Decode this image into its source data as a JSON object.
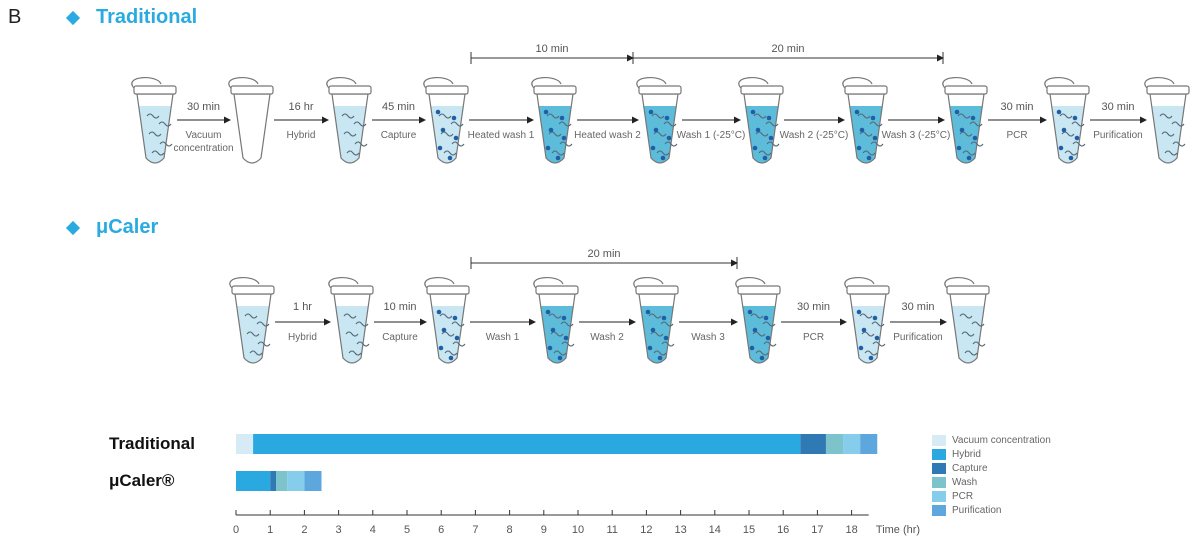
{
  "panel_label": "B",
  "traditional": {
    "title": "Traditional",
    "steps": [
      {
        "time": "30 min",
        "label": "Vacuum",
        "label2": "concentration"
      },
      {
        "time": "16 hr",
        "label": "Hybrid"
      },
      {
        "time": "45 min",
        "label": "Capture"
      },
      {
        "time": "",
        "label": "Heated wash 1"
      },
      {
        "time": "",
        "label": "Heated wash 2"
      },
      {
        "time": "",
        "label": "Wash 1 (-25°C)"
      },
      {
        "time": "",
        "label": "Wash 2 (-25°C)"
      },
      {
        "time": "",
        "label": "Wash 3 (-25°C)"
      },
      {
        "time": "30 min",
        "label": "PCR"
      },
      {
        "time": "30 min",
        "label": "Purification"
      }
    ],
    "brackets": [
      {
        "label": "10 min"
      },
      {
        "label": "20 min"
      }
    ]
  },
  "ucaler": {
    "title": "μCaler",
    "steps": [
      {
        "time": "1 hr",
        "label": "Hybrid"
      },
      {
        "time": "10 min",
        "label": "Capture"
      },
      {
        "time": "",
        "label": "Wash 1"
      },
      {
        "time": "",
        "label": "Wash 2"
      },
      {
        "time": "",
        "label": "Wash 3"
      },
      {
        "time": "30 min",
        "label": "PCR"
      },
      {
        "time": "30 min",
        "label": "Purification"
      }
    ],
    "brackets": [
      {
        "label": "20 min"
      }
    ]
  },
  "chart_data": {
    "type": "bar",
    "orientation": "horizontal-stacked",
    "categories": [
      "Traditional",
      "μCaler®"
    ],
    "series": [
      {
        "name": "Vacuum concentration",
        "color": "#d6ebf5",
        "values": [
          0.5,
          0
        ]
      },
      {
        "name": "Hybrid",
        "color": "#29a9df",
        "values": [
          16,
          1
        ]
      },
      {
        "name": "Capture",
        "color": "#2f79b4",
        "values": [
          0.75,
          0.17
        ]
      },
      {
        "name": "Wash",
        "color": "#7cc3cb",
        "values": [
          0.5,
          0.33
        ]
      },
      {
        "name": "PCR",
        "color": "#86cdec",
        "values": [
          0.5,
          0.5
        ]
      },
      {
        "name": "Purification",
        "color": "#5da7de",
        "values": [
          0.5,
          0.5
        ]
      }
    ],
    "xlabel": "Time (hr)",
    "xlim": [
      0,
      18.5
    ],
    "xticks": [
      0,
      1,
      2,
      3,
      4,
      5,
      6,
      7,
      8,
      9,
      10,
      11,
      12,
      13,
      14,
      15,
      16,
      17,
      18
    ],
    "legend_position": "right",
    "grid": false
  }
}
